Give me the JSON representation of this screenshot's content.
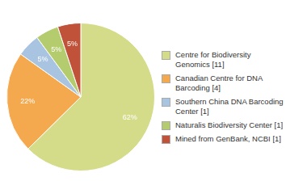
{
  "chart_data": {
    "type": "pie",
    "categories": [
      "Centre for Biodiversity\nGenomics [11]",
      "Canadian Centre for DNA\nBarcoding [4]",
      "Southern China DNA Barcoding\nCenter [1]",
      "Naturalis Biodiversity Center [1]",
      "Mined from GenBank, NCBI [1]"
    ],
    "values": [
      62,
      22,
      5,
      5,
      5
    ],
    "value_labels": [
      "62%",
      "22%",
      "5%",
      "5%",
      "5%"
    ],
    "colors": [
      "#d4dc8a",
      "#f5a94e",
      "#a8c4e0",
      "#b5cc6e",
      "#c0523a"
    ],
    "data_labels": true,
    "legend": "right"
  }
}
